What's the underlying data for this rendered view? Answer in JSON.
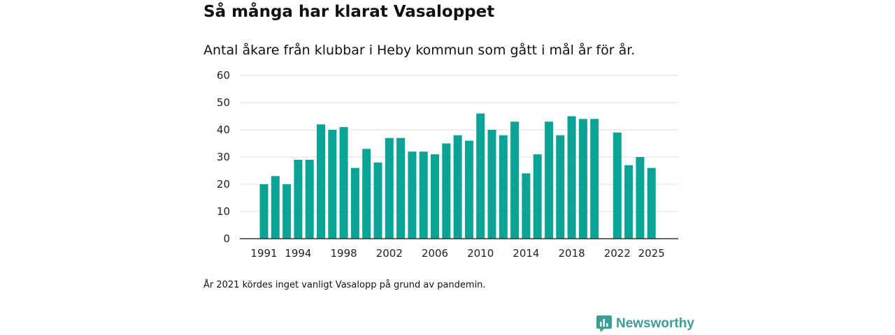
{
  "header": {
    "title": "Så många har klarat Vasaloppet",
    "subtitle": "Antal åkare från klubbar i Heby kommun som gått i mål år för år."
  },
  "footer": {
    "note": "År 2021 kördes inget vanligt Vasalopp på grund av pandemin.",
    "brand": "Newsworthy"
  },
  "colors": {
    "bar": "#0aa396",
    "grid": "#dddddd",
    "axis": "#333333",
    "brand": "#3a9e93"
  },
  "chart_data": {
    "type": "bar",
    "title": "Så många har klarat Vasaloppet",
    "subtitle": "Antal åkare från klubbar i Heby kommun som gått i mål år för år.",
    "xlabel": "",
    "ylabel": "",
    "ylim": [
      0,
      60
    ],
    "yticks": [
      0,
      10,
      20,
      30,
      40,
      50,
      60
    ],
    "xticks": [
      1991,
      1994,
      1998,
      2002,
      2006,
      2010,
      2014,
      2018,
      2022,
      2025
    ],
    "grid": true,
    "categories": [
      1991,
      1992,
      1993,
      1994,
      1995,
      1996,
      1997,
      1998,
      1999,
      2000,
      2001,
      2002,
      2003,
      2004,
      2005,
      2006,
      2007,
      2008,
      2009,
      2010,
      2011,
      2012,
      2013,
      2014,
      2015,
      2016,
      2017,
      2018,
      2019,
      2020,
      2021,
      2022,
      2023,
      2024,
      2025
    ],
    "values": [
      20,
      23,
      20,
      29,
      29,
      42,
      40,
      41,
      26,
      33,
      28,
      37,
      37,
      32,
      32,
      31,
      35,
      38,
      36,
      46,
      40,
      38,
      43,
      24,
      31,
      43,
      38,
      45,
      44,
      44,
      null,
      39,
      27,
      30,
      26
    ]
  }
}
